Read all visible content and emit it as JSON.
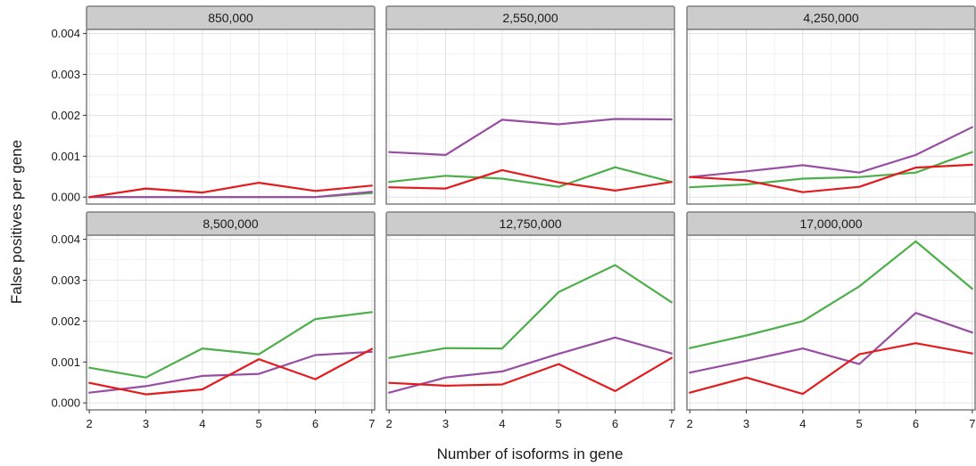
{
  "chart_data": {
    "type": "line",
    "xlabel": "Number of isoforms in gene",
    "ylabel": "False positives per gene",
    "x": [
      2,
      3,
      4,
      5,
      6,
      7
    ],
    "xlim": [
      1.95,
      7.05
    ],
    "ylim": [
      -0.00017,
      0.0041
    ],
    "yticks": [
      0.0,
      0.001,
      0.002,
      0.003,
      0.004
    ],
    "ytick_labels": [
      "0.000",
      "0.001",
      "0.002",
      "0.003",
      "0.004"
    ],
    "xtick_labels": [
      "2",
      "3",
      "4",
      "5",
      "6",
      "7"
    ],
    "grid": true,
    "series_colors": [
      "#4DAF4A",
      "#984EA3",
      "#E41A1C"
    ],
    "panels": [
      {
        "title": "850,000",
        "series": [
          {
            "color": "#4DAF4A",
            "values": [
              0.0,
              0.0,
              0.0,
              0.0,
              0.0,
              0.0001
            ]
          },
          {
            "color": "#984EA3",
            "values": [
              0.0,
              0.0,
              0.0,
              0.0,
              0.0,
              0.00013
            ]
          },
          {
            "color": "#E41A1C",
            "values": [
              0.0,
              0.00021,
              0.00011,
              0.00035,
              0.00015,
              0.00028
            ]
          }
        ]
      },
      {
        "title": "2,550,000",
        "series": [
          {
            "color": "#4DAF4A",
            "values": [
              0.00037,
              0.00052,
              0.00045,
              0.00025,
              0.00073,
              0.00037
            ]
          },
          {
            "color": "#984EA3",
            "values": [
              0.0011,
              0.00103,
              0.00189,
              0.00178,
              0.00191,
              0.0019
            ]
          },
          {
            "color": "#E41A1C",
            "values": [
              0.00024,
              0.00021,
              0.00066,
              0.00036,
              0.00016,
              0.00037
            ]
          }
        ]
      },
      {
        "title": "4,250,000",
        "series": [
          {
            "color": "#4DAF4A",
            "values": [
              0.00024,
              0.00031,
              0.00045,
              0.00049,
              0.0006,
              0.0011
            ]
          },
          {
            "color": "#984EA3",
            "values": [
              0.00049,
              0.00063,
              0.00078,
              0.0006,
              0.00103,
              0.00171
            ]
          },
          {
            "color": "#E41A1C",
            "values": [
              0.00049,
              0.00041,
              0.00012,
              0.00025,
              0.00072,
              0.00079
            ]
          }
        ]
      },
      {
        "title": "8,500,000",
        "series": [
          {
            "color": "#4DAF4A",
            "values": [
              0.00086,
              0.00062,
              0.00133,
              0.00119,
              0.00205,
              0.00222
            ]
          },
          {
            "color": "#984EA3",
            "values": [
              0.00025,
              0.00041,
              0.00066,
              0.00071,
              0.00117,
              0.00125
            ]
          },
          {
            "color": "#E41A1C",
            "values": [
              0.00049,
              0.00021,
              0.00033,
              0.00107,
              0.00058,
              0.00132
            ]
          }
        ]
      },
      {
        "title": "12,750,000",
        "series": [
          {
            "color": "#4DAF4A",
            "values": [
              0.0011,
              0.00134,
              0.00133,
              0.00271,
              0.00337,
              0.00246
            ]
          },
          {
            "color": "#984EA3",
            "values": [
              0.00025,
              0.00062,
              0.00077,
              0.0012,
              0.0016,
              0.00121
            ]
          },
          {
            "color": "#E41A1C",
            "values": [
              0.00049,
              0.00042,
              0.00045,
              0.00095,
              0.00029,
              0.0011
            ]
          }
        ]
      },
      {
        "title": "17,000,000",
        "series": [
          {
            "color": "#4DAF4A",
            "values": [
              0.00134,
              0.00165,
              0.002,
              0.00285,
              0.00395,
              0.00279
            ]
          },
          {
            "color": "#984EA3",
            "values": [
              0.00074,
              0.00103,
              0.00133,
              0.00095,
              0.0022,
              0.00172
            ]
          },
          {
            "color": "#E41A1C",
            "values": [
              0.00025,
              0.00062,
              0.00022,
              0.00119,
              0.00146,
              0.00121
            ]
          }
        ]
      }
    ]
  }
}
